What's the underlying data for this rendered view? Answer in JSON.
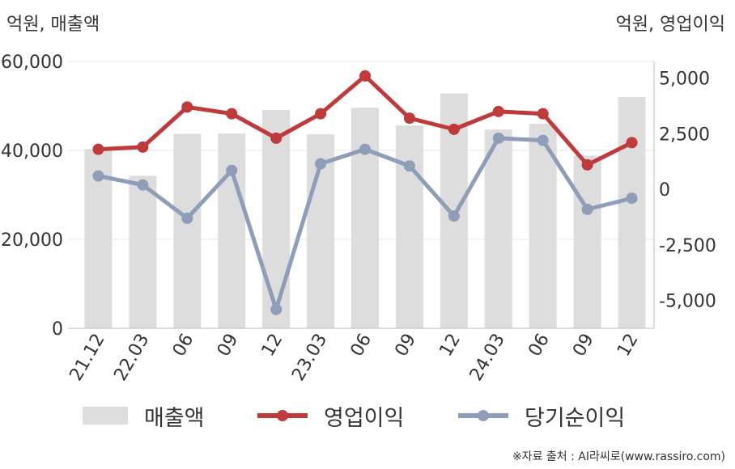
{
  "chart_data": {
    "type": "bar",
    "left_axis_unit": "억원, 매출액",
    "right_axis_unit": "억원, 영업이익",
    "categories": [
      "21.12",
      "22.03",
      "06",
      "09",
      "12",
      "23.03",
      "06",
      "09",
      "12",
      "24.03",
      "06",
      "09",
      "12"
    ],
    "left_axis": {
      "ylim": [
        0,
        60000
      ],
      "ticks": [
        "0",
        "20,000",
        "40,000",
        "60,000"
      ]
    },
    "right_axis": {
      "ylim": [
        -6250,
        5750
      ],
      "ticks": [
        "-5,000",
        "-2,500",
        "0",
        "2,500",
        "5,000"
      ]
    },
    "grid": true,
    "series": [
      {
        "name": "매출액",
        "type": "bar",
        "axis": "left",
        "color": "#dddddd",
        "values": [
          40300,
          34300,
          43700,
          43800,
          49100,
          43600,
          49600,
          45600,
          52800,
          44700,
          46000,
          38800,
          52000
        ]
      },
      {
        "name": "영업이익",
        "type": "line",
        "axis": "right",
        "color": "#c0393b",
        "values": [
          1800,
          1900,
          3700,
          3400,
          2300,
          3400,
          5100,
          3200,
          2700,
          3500,
          3400,
          1100,
          2100
        ]
      },
      {
        "name": "당기순이익",
        "type": "line",
        "axis": "right",
        "color": "#8e9db8",
        "values": [
          600,
          200,
          -1300,
          850,
          -5400,
          1150,
          1800,
          1050,
          -1200,
          2300,
          2200,
          -900,
          -400
        ]
      }
    ]
  },
  "legend": {
    "revenue": "매출액",
    "operating_profit": "영업이익",
    "net_income": "당기순이익"
  },
  "source": "※자료 출처 : AI라씨로(www.rassiro.com)"
}
